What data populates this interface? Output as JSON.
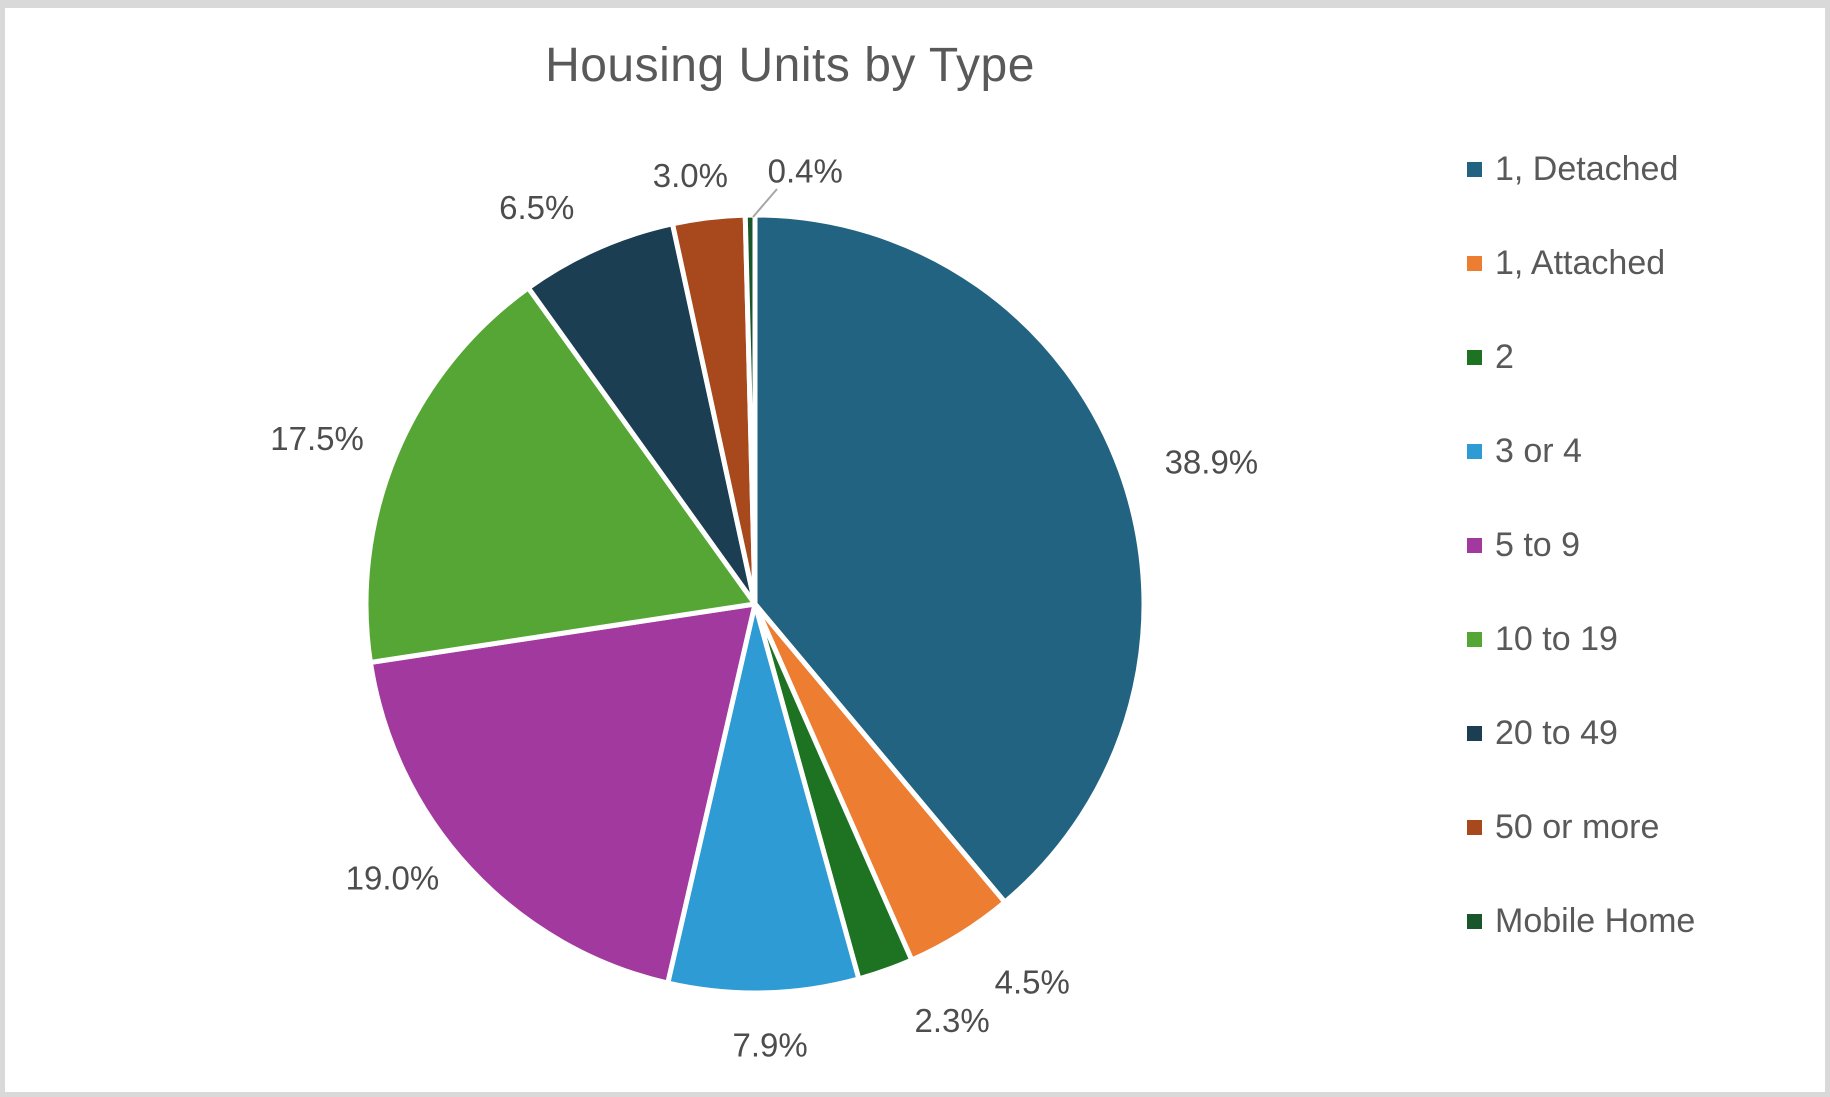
{
  "chart_data": {
    "type": "pie",
    "title": "Housing Units by Type",
    "categories": [
      "1, Detached",
      "1, Attached",
      "2",
      "3 or 4",
      "5 to 9",
      "10 to 19",
      "20 to 49",
      "50 or more",
      "Mobile Home"
    ],
    "values": [
      38.9,
      4.5,
      2.3,
      7.9,
      19.0,
      17.5,
      6.5,
      3.0,
      0.4
    ],
    "labels": [
      "38.9%",
      "4.5%",
      "2.3%",
      "7.9%",
      "19.0%",
      "17.5%",
      "6.5%",
      "3.0%",
      "0.4%"
    ],
    "colors": [
      "#216380",
      "#ED7D31",
      "#1E7323",
      "#2E9BD5",
      "#A2399E",
      "#56A636",
      "#1B3E52",
      "#A7491C",
      "#1A562B"
    ],
    "slice_border_color": "#FFFFFF",
    "leader_line_color": "#A6A6A6",
    "title_color": "#595959",
    "label_color": "#4D4D4D",
    "legend_text_color": "#595959",
    "legend_position": "right",
    "start_angle_deg": 0,
    "direction": "clockwise"
  }
}
